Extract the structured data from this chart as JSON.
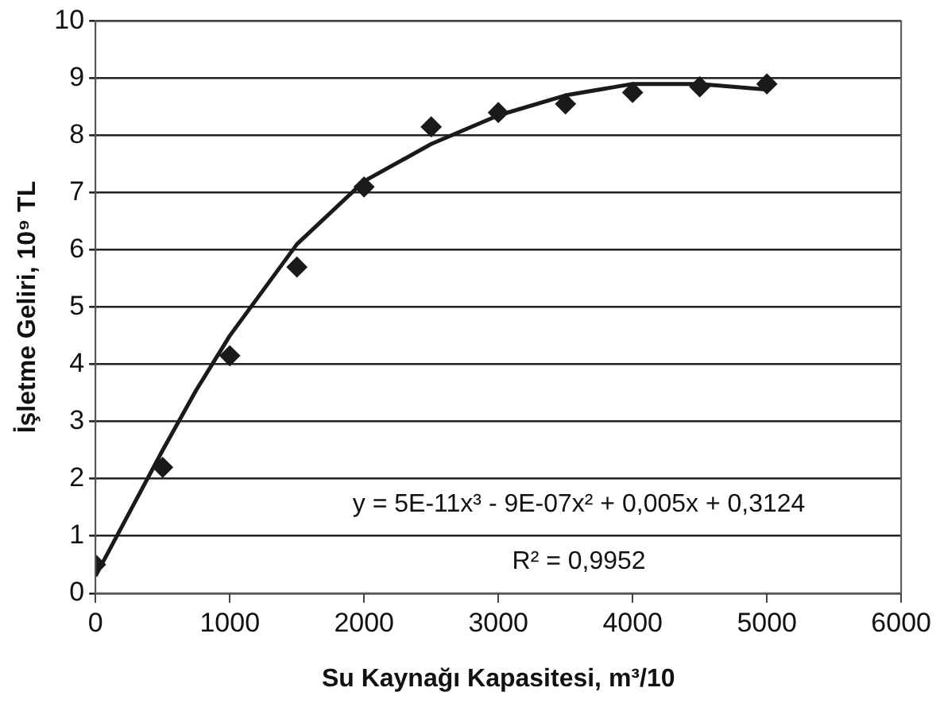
{
  "chart_data": {
    "type": "scatter",
    "xlabel": "Su Kaynağı Kapasitesi, m³/10",
    "ylabel": "İşletme Geliri, 10⁹ TL",
    "xlim": [
      0,
      6000
    ],
    "xticks": [
      0,
      1000,
      2000,
      3000,
      4000,
      5000,
      6000
    ],
    "ylim": [
      0,
      10
    ],
    "yticks": [
      0,
      1,
      2,
      3,
      4,
      5,
      6,
      7,
      8,
      9,
      10
    ],
    "grid": "y",
    "legend": false,
    "marker": "diamond",
    "annotations": [
      "y = 5E-11x³ - 9E-07x² + 0,005x + 0,3124",
      "R² = 0,9952"
    ],
    "series": [
      {
        "type": "scatter",
        "color": "#1a1a1a",
        "x": [
          0,
          500,
          1000,
          1500,
          2000,
          2500,
          3000,
          3500,
          4000,
          4500,
          5000
        ],
        "values": [
          0.5,
          2.2,
          4.15,
          5.7,
          7.1,
          8.15,
          8.4,
          8.55,
          8.75,
          8.85,
          8.9
        ]
      },
      {
        "type": "line",
        "color": "#1a1a1a",
        "marker": "none",
        "line_style": "solid",
        "x": [
          0,
          250,
          500,
          750,
          1000,
          1500,
          2000,
          2500,
          3000,
          3500,
          4000,
          4500,
          5000
        ],
        "values": [
          0.3,
          1.4,
          2.5,
          3.55,
          4.5,
          6.1,
          7.2,
          7.85,
          8.35,
          8.7,
          8.9,
          8.9,
          8.8
        ]
      }
    ]
  }
}
